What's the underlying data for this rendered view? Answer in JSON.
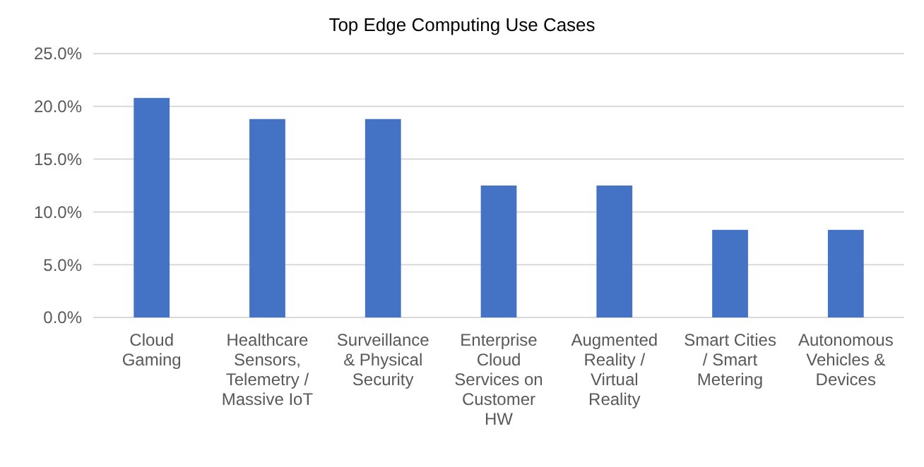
{
  "chart_data": {
    "type": "bar",
    "title": "Top Edge Computing Use Cases",
    "categories": [
      "Cloud\nGaming",
      "Healthcare\nSensors,\nTelemetry /\nMassive IoT",
      "Surveillance\n& Physical\nSecurity",
      "Enterprise\nCloud\nServices on\nCustomer\nHW",
      "Augmented\nReality /\nVirtual\nReality",
      "Smart Cities\n/ Smart\nMetering",
      "Autonomous\nVehicles &\nDevices"
    ],
    "values": [
      20.8,
      18.8,
      18.8,
      12.5,
      12.5,
      8.3,
      8.3
    ],
    "color": "#4472c4",
    "ylim": [
      0,
      25
    ],
    "yticks": [
      {
        "value": 0,
        "label": "0.0%"
      },
      {
        "value": 5,
        "label": "5.0%"
      },
      {
        "value": 10,
        "label": "10.0%"
      },
      {
        "value": 15,
        "label": "15.0%"
      },
      {
        "value": 20,
        "label": "20.0%"
      },
      {
        "value": 25,
        "label": "25.0%"
      }
    ],
    "grid": true
  }
}
